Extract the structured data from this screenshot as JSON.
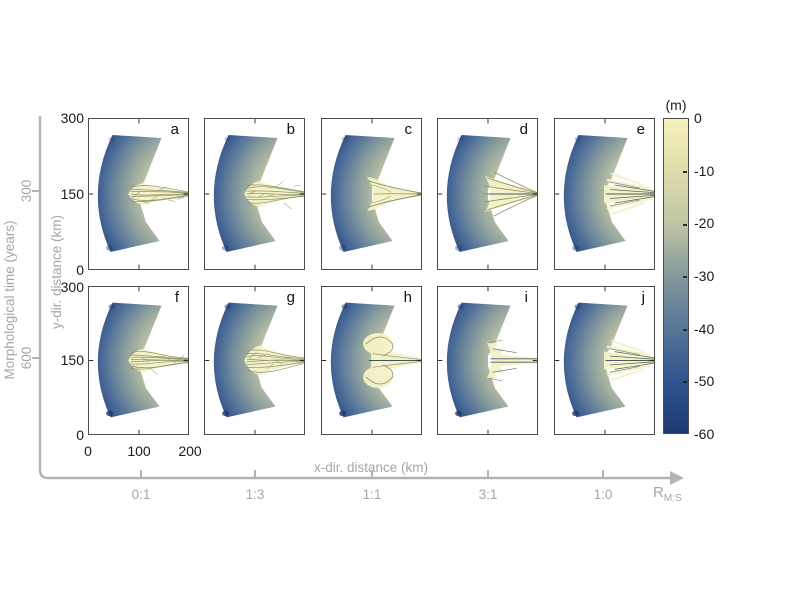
{
  "colors": {
    "axis_gray": "#b3b3b3",
    "label_gray": "#a6a6a6",
    "panel_border": "#4b4b4b",
    "tick_text": "#1a1a1a",
    "fan_deep_blue": "#1c3a6e",
    "fan_shallow_yellow": "#f3f0c0"
  },
  "chart_data": {
    "type": "heatmap",
    "description": "2x5 grid of simulated delta bed-elevation maps; columns are river:tide ratios, rows are morphological time",
    "grid": {
      "rows": 2,
      "cols": 5
    },
    "x_axis": {
      "label": "x-dir. distance (km)",
      "ticks": [
        "0",
        "100",
        "200"
      ],
      "range_km": [
        0,
        200
      ]
    },
    "y_axis": {
      "label": "y-dir. distance (km)",
      "ticks": [
        "300",
        "150",
        "0"
      ],
      "range_km": [
        0,
        300
      ]
    },
    "time_axis": {
      "label": "Morphological time (years)",
      "ticks": [
        "300",
        "600"
      ]
    },
    "ratio_axis": {
      "label_base": "R",
      "label_sub": "M:S",
      "ticks": [
        "0:1",
        "1:3",
        "1:1",
        "3:1",
        "1:0"
      ]
    },
    "colorbar": {
      "title": "(m)",
      "ticks": [
        "0",
        "-10",
        "-20",
        "-30",
        "-40",
        "-50",
        "-60"
      ],
      "min": -60,
      "max": 0,
      "unit": "m",
      "stops": [
        "#f5f2ba",
        "#dedcab",
        "#bfc6a4",
        "#84989b",
        "#567698",
        "#30548e",
        "#1b3a70"
      ]
    },
    "fan_gradient": [
      [
        "0",
        "#f3f0c0"
      ],
      [
        "0.18",
        "#e7e4b4"
      ],
      [
        "0.38",
        "#c3c8a6"
      ],
      [
        "0.58",
        "#8b9e9d"
      ],
      [
        "0.76",
        "#50709a"
      ],
      [
        "0.9",
        "#2b4b82"
      ],
      [
        "1",
        "#1c3a6e"
      ]
    ],
    "panels": [
      {
        "letter": "a",
        "time_years": 300,
        "ratio": "0:1",
        "style": "braided",
        "seed": 3,
        "coneHW": 11,
        "channels": 7
      },
      {
        "letter": "b",
        "time_years": 300,
        "ratio": "1:3",
        "style": "braided",
        "seed": 7,
        "coneHW": 13,
        "channels": 7
      },
      {
        "letter": "c",
        "time_years": 300,
        "ratio": "1:1",
        "style": "funnel",
        "seed": 11,
        "coneHW": 13,
        "channels": 4
      },
      {
        "letter": "d",
        "time_years": 300,
        "ratio": "3:1",
        "style": "radial",
        "seed": 13,
        "coneHW": 14,
        "channels": 7
      },
      {
        "letter": "e",
        "time_years": 300,
        "ratio": "1:0",
        "style": "fingers",
        "seed": 17,
        "coneHW": 12,
        "channels": 5
      },
      {
        "letter": "f",
        "time_years": 600,
        "ratio": "0:1",
        "style": "braided",
        "seed": 23,
        "coneHW": 12,
        "channels": 8
      },
      {
        "letter": "g",
        "time_years": 600,
        "ratio": "1:3",
        "style": "braided",
        "seed": 29,
        "coneHW": 15,
        "channels": 8
      },
      {
        "letter": "h",
        "time_years": 600,
        "ratio": "1:1",
        "style": "lobed",
        "seed": 31,
        "coneHW": 16,
        "channels": 6
      },
      {
        "letter": "i",
        "time_years": 600,
        "ratio": "3:1",
        "style": "stepped",
        "seed": 37,
        "coneHW": 15,
        "channels": 6
      },
      {
        "letter": "j",
        "time_years": 600,
        "ratio": "1:0",
        "style": "fingers",
        "seed": 41,
        "coneHW": 14,
        "channels": 6
      }
    ]
  }
}
